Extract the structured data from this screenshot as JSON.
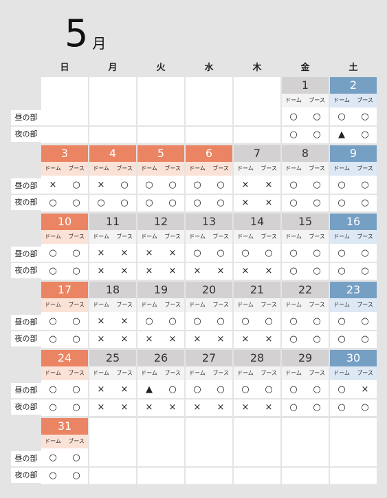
{
  "header": {
    "month_number": "5",
    "month_unit": "月"
  },
  "weekdays": [
    "日",
    "月",
    "火",
    "水",
    "木",
    "金",
    "土"
  ],
  "row_labels": {
    "day": "昼の部",
    "night": "夜の部"
  },
  "sub_labels": {
    "dome": "ドーム",
    "booth": "ブース"
  },
  "colors": {
    "holiday_header": "#eb8462",
    "holiday_sub": "#fbe2d7",
    "weekday_header": "#d3d1d2",
    "weekday_sub": "#f3f3f3",
    "saturday_header": "#769fc4",
    "saturday_sub": "#dce8f4",
    "page_bg": "#e4e4e4"
  },
  "weeks": [
    [
      null,
      null,
      null,
      null,
      null,
      {
        "date": "1",
        "kind": "weekday",
        "day": [
          "○",
          "○"
        ],
        "night": [
          "○",
          "○"
        ]
      },
      {
        "date": "2",
        "kind": "saturday",
        "day": [
          "○",
          "○"
        ],
        "night": [
          "▲",
          "○"
        ]
      }
    ],
    [
      {
        "date": "3",
        "kind": "holiday",
        "day": [
          "×",
          "○"
        ],
        "night": [
          "○",
          "○"
        ]
      },
      {
        "date": "4",
        "kind": "holiday",
        "day": [
          "×",
          "○"
        ],
        "night": [
          "○",
          "○"
        ]
      },
      {
        "date": "5",
        "kind": "holiday",
        "day": [
          "○",
          "○"
        ],
        "night": [
          "○",
          "○"
        ]
      },
      {
        "date": "6",
        "kind": "holiday",
        "day": [
          "○",
          "○"
        ],
        "night": [
          "○",
          "○"
        ]
      },
      {
        "date": "7",
        "kind": "weekday",
        "day": [
          "×",
          "×"
        ],
        "night": [
          "×",
          "×"
        ]
      },
      {
        "date": "8",
        "kind": "weekday",
        "day": [
          "○",
          "○"
        ],
        "night": [
          "○",
          "○"
        ]
      },
      {
        "date": "9",
        "kind": "saturday",
        "day": [
          "○",
          "○"
        ],
        "night": [
          "○",
          "○"
        ]
      }
    ],
    [
      {
        "date": "10",
        "kind": "holiday",
        "day": [
          "○",
          "○"
        ],
        "night": [
          "○",
          "○"
        ]
      },
      {
        "date": "11",
        "kind": "weekday",
        "day": [
          "×",
          "×"
        ],
        "night": [
          "×",
          "×"
        ]
      },
      {
        "date": "12",
        "kind": "weekday",
        "day": [
          "×",
          "×"
        ],
        "night": [
          "×",
          "×"
        ]
      },
      {
        "date": "13",
        "kind": "weekday",
        "day": [
          "○",
          "○"
        ],
        "night": [
          "×",
          "×"
        ]
      },
      {
        "date": "14",
        "kind": "weekday",
        "day": [
          "○",
          "○"
        ],
        "night": [
          "×",
          "×"
        ]
      },
      {
        "date": "15",
        "kind": "weekday",
        "day": [
          "○",
          "○"
        ],
        "night": [
          "○",
          "○"
        ]
      },
      {
        "date": "16",
        "kind": "saturday",
        "day": [
          "○",
          "○"
        ],
        "night": [
          "○",
          "○"
        ]
      }
    ],
    [
      {
        "date": "17",
        "kind": "holiday",
        "day": [
          "○",
          "○"
        ],
        "night": [
          "○",
          "○"
        ]
      },
      {
        "date": "18",
        "kind": "weekday",
        "day": [
          "×",
          "×"
        ],
        "night": [
          "×",
          "×"
        ]
      },
      {
        "date": "19",
        "kind": "weekday",
        "day": [
          "○",
          "○"
        ],
        "night": [
          "×",
          "×"
        ]
      },
      {
        "date": "20",
        "kind": "weekday",
        "day": [
          "○",
          "○"
        ],
        "night": [
          "×",
          "×"
        ]
      },
      {
        "date": "21",
        "kind": "weekday",
        "day": [
          "○",
          "○"
        ],
        "night": [
          "×",
          "×"
        ]
      },
      {
        "date": "22",
        "kind": "weekday",
        "day": [
          "○",
          "○"
        ],
        "night": [
          "○",
          "○"
        ]
      },
      {
        "date": "23",
        "kind": "saturday",
        "day": [
          "○",
          "○"
        ],
        "night": [
          "○",
          "○"
        ]
      }
    ],
    [
      {
        "date": "24",
        "kind": "holiday",
        "day": [
          "○",
          "○"
        ],
        "night": [
          "○",
          "○"
        ]
      },
      {
        "date": "25",
        "kind": "weekday",
        "day": [
          "×",
          "×"
        ],
        "night": [
          "×",
          "×"
        ]
      },
      {
        "date": "26",
        "kind": "weekday",
        "day": [
          "▲",
          "○"
        ],
        "night": [
          "×",
          "×"
        ]
      },
      {
        "date": "27",
        "kind": "weekday",
        "day": [
          "○",
          "○"
        ],
        "night": [
          "×",
          "×"
        ]
      },
      {
        "date": "28",
        "kind": "weekday",
        "day": [
          "○",
          "○"
        ],
        "night": [
          "×",
          "×"
        ]
      },
      {
        "date": "29",
        "kind": "weekday",
        "day": [
          "○",
          "○"
        ],
        "night": [
          "○",
          "○"
        ]
      },
      {
        "date": "30",
        "kind": "saturday",
        "day": [
          "○",
          "×"
        ],
        "night": [
          "○",
          "○"
        ]
      }
    ],
    [
      {
        "date": "31",
        "kind": "holiday",
        "day": [
          "○",
          "○"
        ],
        "night": [
          "○",
          "○"
        ]
      },
      null,
      null,
      null,
      null,
      null,
      null
    ]
  ]
}
